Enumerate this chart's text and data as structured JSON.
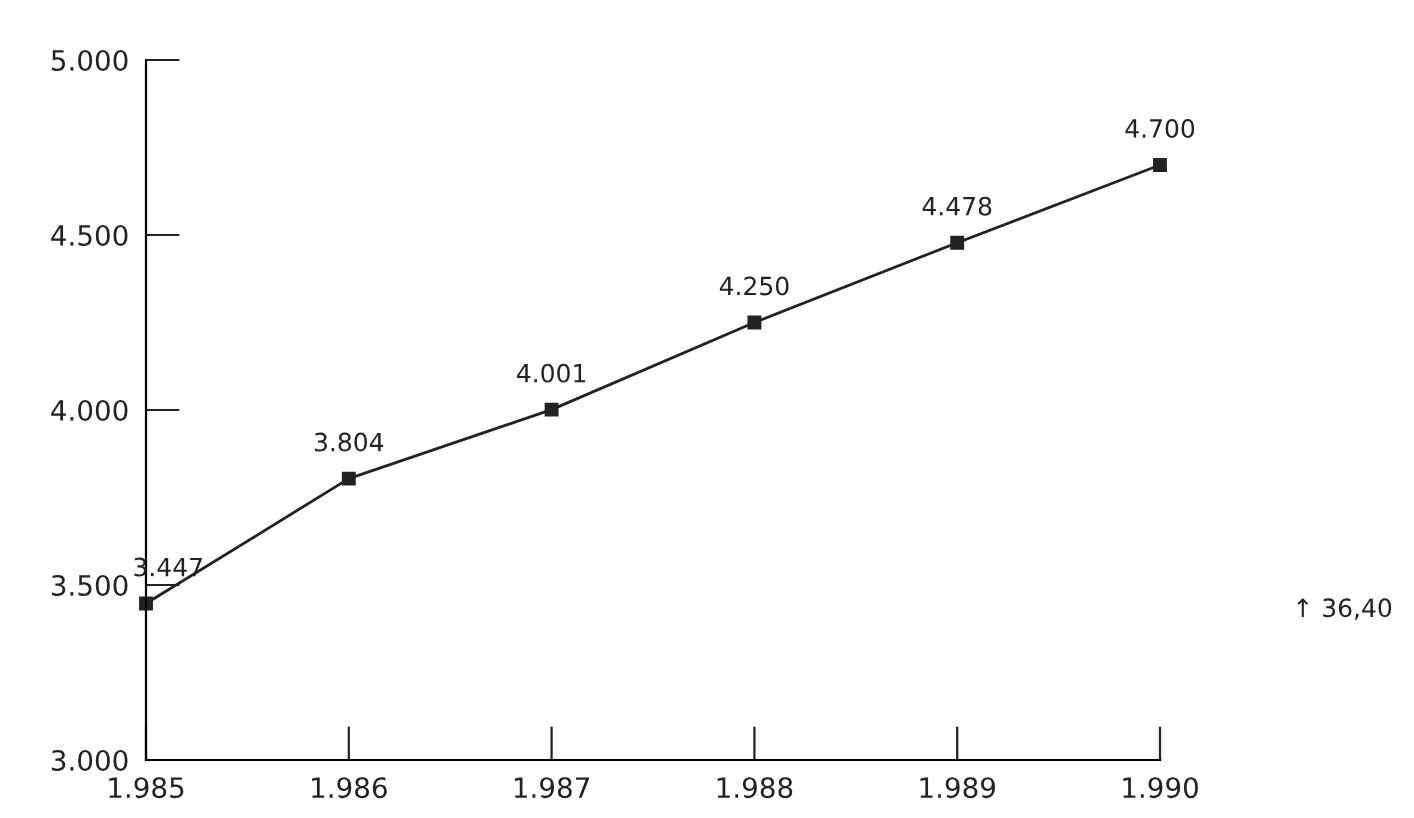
{
  "chart_data": {
    "type": "line",
    "x": [
      1985,
      1986,
      1987,
      1988,
      1989,
      1990
    ],
    "series": [
      {
        "color": "#222222",
        "values": [
          3447,
          3804,
          4001,
          4250,
          4478,
          4700
        ],
        "value_labels": [
          "3.447",
          "3.804",
          "4.001",
          "4.250",
          "4.478",
          "4.700"
        ]
      }
    ],
    "xlim": [
      1985,
      1990
    ],
    "xticks": [
      {
        "value": 1985,
        "label": "1.985"
      },
      {
        "value": 1986,
        "label": "1.986"
      },
      {
        "value": 1987,
        "label": "1.987"
      },
      {
        "value": 1988,
        "label": "1.988"
      },
      {
        "value": 1989,
        "label": "1.989"
      },
      {
        "value": 1990,
        "label": "1.990"
      }
    ],
    "ylim": [
      3000,
      5000
    ],
    "yticks": [
      {
        "value": 3000,
        "label": "3.000"
      },
      {
        "value": 3500,
        "label": "3.500"
      },
      {
        "value": 4000,
        "label": "4.000"
      },
      {
        "value": 4500,
        "label": "4.500"
      },
      {
        "value": 5000,
        "label": "5.000"
      }
    ],
    "annotations": [
      "↑ 36,40"
    ],
    "marker": "square",
    "line_style": "solid",
    "grid": false,
    "legend": false
  }
}
